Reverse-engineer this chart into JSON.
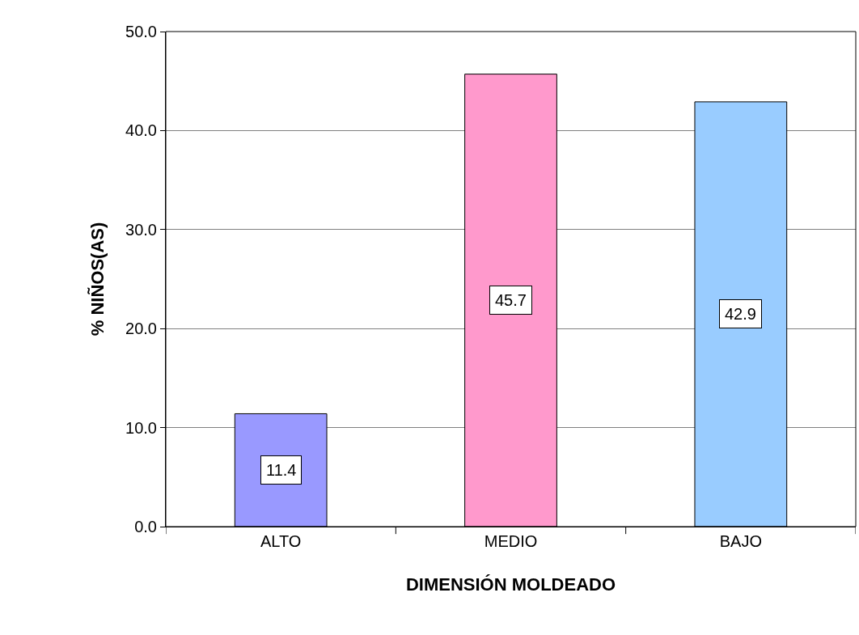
{
  "chart_data": {
    "type": "bar",
    "xlabel": "DIMENSIÓN MOLDEADO",
    "ylabel": "% NIÑOS(AS)",
    "categories": [
      "ALTO",
      "MEDIO",
      "BAJO"
    ],
    "values": [
      11.4,
      45.7,
      42.9
    ],
    "colors": [
      "#9999ff",
      "#ff99cc",
      "#99ccff"
    ],
    "ylim": [
      0,
      50
    ],
    "yticks": [
      {
        "value": 0,
        "label": "0.0"
      },
      {
        "value": 10,
        "label": "10.0"
      },
      {
        "value": 20,
        "label": "20.0"
      },
      {
        "value": 30,
        "label": "30.0"
      },
      {
        "value": 40,
        "label": "40.0"
      },
      {
        "value": 50,
        "label": "50.0"
      }
    ],
    "grid": "y",
    "data_labels": true,
    "legend": false
  }
}
